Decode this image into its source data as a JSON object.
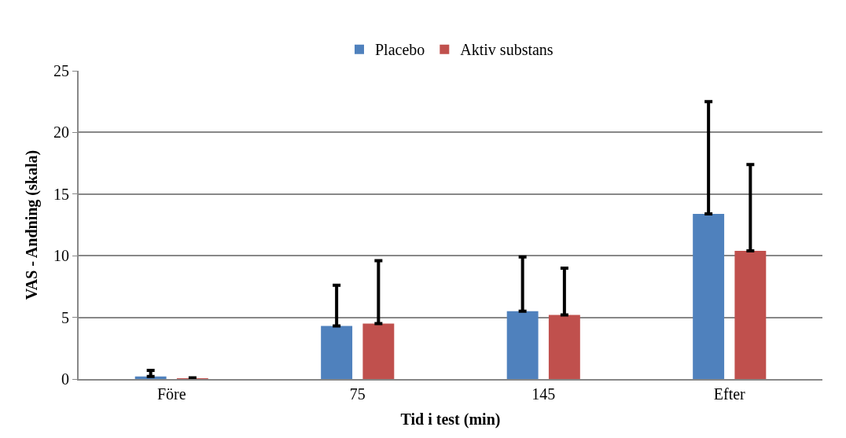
{
  "chart_data": {
    "type": "bar",
    "xlabel": "Tid i test (min)",
    "ylabel": "VAS - Andning (skala)",
    "categories": [
      "Före",
      "75",
      "145",
      "Efter"
    ],
    "series": [
      {
        "name": "Placebo",
        "color": "#4f81bd",
        "values": [
          0.2,
          4.3,
          5.5,
          13.4
        ],
        "errors": [
          [
            0.2,
            0.7
          ],
          [
            4.3,
            7.6
          ],
          [
            5.5,
            9.9
          ],
          [
            13.4,
            22.5
          ]
        ]
      },
      {
        "name": "Aktiv substans",
        "color": "#c0504d",
        "values": [
          0.05,
          4.5,
          5.2,
          10.4
        ],
        "errors": [
          [
            0.05,
            0.1
          ],
          [
            4.5,
            9.6
          ],
          [
            5.2,
            9.0
          ],
          [
            10.4,
            17.4
          ]
        ]
      }
    ],
    "ylim": [
      0,
      25
    ],
    "yticks": [
      0,
      5,
      10,
      15,
      20,
      25
    ],
    "grid": "y",
    "legend": "top"
  }
}
